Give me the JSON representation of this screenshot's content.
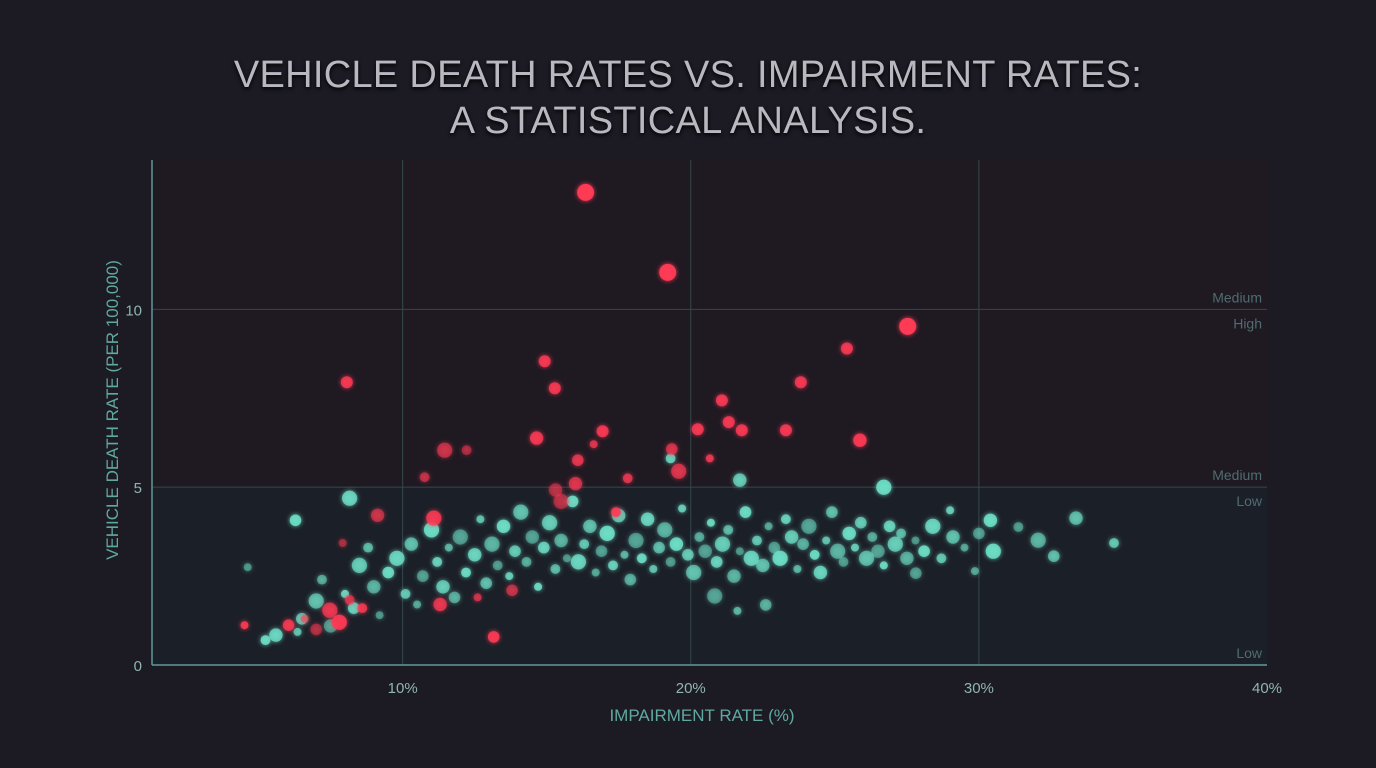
{
  "chart_data": {
    "type": "scatter",
    "title": [
      "VEHICLE DEATH RATES VS. IMPAIRMENT RATES:",
      "A STATISTICAL ANALYSIS."
    ],
    "xlabel": "IMPAIRMENT RATE (%)",
    "ylabel": "VEHICLE DEATH RATE (PER 100,000)",
    "xlim": [
      1.3,
      40
    ],
    "ylim": [
      0,
      14.2
    ],
    "x_ticks": [
      {
        "value": 10,
        "label": "10%"
      },
      {
        "value": 20,
        "label": "20%"
      },
      {
        "value": 30,
        "label": "30%"
      },
      {
        "value": 40,
        "label": "40%"
      }
    ],
    "y_ticks": [
      {
        "value": 0,
        "label": "0"
      },
      {
        "value": 5,
        "label": "5"
      },
      {
        "value": 10,
        "label": "10"
      }
    ],
    "grid": true,
    "band_labels": [
      {
        "y": 10,
        "above": "Medium",
        "below": "High"
      },
      {
        "y": 5,
        "above": "Medium",
        "below": "Low"
      },
      {
        "y": 0,
        "above": "Low"
      }
    ],
    "colors": {
      "background": "#1c1b24",
      "teal": "#6fe0c8",
      "red": "#ff3a55",
      "grid": "#34494d",
      "axis": "#5f9a98"
    },
    "series": [
      {
        "color": "#ff3a55",
        "points": [
          [
            16.35,
            13.29
          ],
          [
            19.2,
            11.04
          ],
          [
            27.53,
            9.52
          ],
          [
            14.93,
            8.54
          ],
          [
            25.42,
            8.9
          ],
          [
            8.06,
            7.95
          ],
          [
            15.28,
            7.78
          ],
          [
            23.82,
            7.95
          ],
          [
            21.08,
            7.44
          ],
          [
            21.32,
            6.83
          ],
          [
            16.94,
            6.57
          ],
          [
            20.24,
            6.63
          ],
          [
            21.77,
            6.6
          ],
          [
            23.3,
            6.6
          ],
          [
            14.65,
            6.38
          ],
          [
            16.63,
            6.21
          ],
          [
            19.34,
            6.07
          ],
          [
            11.46,
            6.04
          ],
          [
            12.22,
            6.04
          ],
          [
            25.87,
            6.32
          ],
          [
            20.66,
            5.81
          ],
          [
            16.08,
            5.76
          ],
          [
            19.58,
            5.45
          ],
          [
            10.76,
            5.28
          ],
          [
            15.31,
            4.92
          ],
          [
            4.51,
            1.12
          ],
          [
            6.04,
            1.12
          ],
          [
            7.47,
            1.54
          ],
          [
            8.16,
            1.83
          ],
          [
            9.13,
            4.21
          ],
          [
            7.92,
            3.43
          ],
          [
            13.16,
            0.79
          ],
          [
            11.08,
            4.13
          ],
          [
            17.81,
            5.25
          ],
          [
            16.0,
            5.1
          ],
          [
            6.6,
            1.3
          ],
          [
            7.0,
            1.0
          ],
          [
            7.8,
            1.2
          ],
          [
            8.6,
            1.6
          ],
          [
            11.3,
            1.7
          ],
          [
            12.6,
            1.9
          ],
          [
            13.8,
            2.1
          ],
          [
            15.5,
            4.6
          ],
          [
            17.4,
            4.3
          ]
        ]
      },
      {
        "color": "#6fe0c8",
        "points": [
          [
            4.62,
            2.75
          ],
          [
            6.28,
            4.07
          ],
          [
            8.16,
            4.69
          ],
          [
            34.69,
            3.43
          ],
          [
            33.37,
            4.13
          ],
          [
            29.86,
            2.64
          ],
          [
            27.81,
            2.58
          ],
          [
            26.7,
            5.0
          ],
          [
            19.3,
            5.81
          ],
          [
            21.7,
            5.2
          ],
          [
            21.62,
            1.52
          ],
          [
            22.6,
            1.69
          ],
          [
            20.83,
            1.94
          ],
          [
            5.24,
            0.7
          ],
          [
            5.6,
            0.84
          ],
          [
            6.35,
            0.93
          ],
          [
            32.6,
            3.06
          ],
          [
            32.06,
            3.51
          ],
          [
            31.37,
            3.88
          ],
          [
            30.4,
            4.07
          ],
          [
            29.0,
            4.35
          ],
          [
            6.5,
            1.3
          ],
          [
            7.0,
            1.8
          ],
          [
            7.2,
            2.4
          ],
          [
            7.5,
            1.1
          ],
          [
            8.0,
            2.0
          ],
          [
            8.3,
            1.6
          ],
          [
            8.5,
            2.8
          ],
          [
            8.8,
            3.3
          ],
          [
            9.0,
            2.2
          ],
          [
            9.2,
            1.4
          ],
          [
            9.5,
            2.6
          ],
          [
            9.8,
            3.0
          ],
          [
            10.1,
            2.0
          ],
          [
            10.3,
            3.4
          ],
          [
            10.5,
            1.7
          ],
          [
            10.7,
            2.5
          ],
          [
            11.0,
            3.8
          ],
          [
            11.2,
            2.9
          ],
          [
            11.4,
            2.2
          ],
          [
            11.6,
            3.3
          ],
          [
            11.8,
            1.9
          ],
          [
            12.0,
            3.6
          ],
          [
            12.2,
            2.6
          ],
          [
            12.5,
            3.1
          ],
          [
            12.7,
            4.1
          ],
          [
            12.9,
            2.3
          ],
          [
            13.1,
            3.4
          ],
          [
            13.3,
            2.8
          ],
          [
            13.5,
            3.9
          ],
          [
            13.7,
            2.5
          ],
          [
            13.9,
            3.2
          ],
          [
            14.1,
            4.3
          ],
          [
            14.3,
            2.9
          ],
          [
            14.5,
            3.6
          ],
          [
            14.7,
            2.2
          ],
          [
            14.9,
            3.3
          ],
          [
            15.1,
            4.0
          ],
          [
            15.3,
            2.7
          ],
          [
            15.5,
            3.5
          ],
          [
            15.7,
            3.0
          ],
          [
            15.9,
            4.6
          ],
          [
            16.1,
            2.9
          ],
          [
            16.3,
            3.4
          ],
          [
            16.5,
            3.9
          ],
          [
            16.7,
            2.6
          ],
          [
            16.9,
            3.2
          ],
          [
            17.1,
            3.7
          ],
          [
            17.3,
            2.8
          ],
          [
            17.5,
            4.2
          ],
          [
            17.7,
            3.1
          ],
          [
            17.9,
            2.4
          ],
          [
            18.1,
            3.5
          ],
          [
            18.3,
            3.0
          ],
          [
            18.5,
            4.1
          ],
          [
            18.7,
            2.7
          ],
          [
            18.9,
            3.3
          ],
          [
            19.1,
            3.8
          ],
          [
            19.3,
            2.9
          ],
          [
            19.5,
            3.4
          ],
          [
            19.7,
            4.4
          ],
          [
            19.9,
            3.1
          ],
          [
            20.1,
            2.6
          ],
          [
            20.3,
            3.6
          ],
          [
            20.5,
            3.2
          ],
          [
            20.7,
            4.0
          ],
          [
            20.9,
            2.9
          ],
          [
            21.1,
            3.4
          ],
          [
            21.3,
            3.8
          ],
          [
            21.5,
            2.5
          ],
          [
            21.7,
            3.2
          ],
          [
            21.9,
            4.3
          ],
          [
            22.1,
            3.0
          ],
          [
            22.3,
            3.5
          ],
          [
            22.5,
            2.8
          ],
          [
            22.7,
            3.9
          ],
          [
            22.9,
            3.3
          ],
          [
            23.1,
            3.0
          ],
          [
            23.3,
            4.1
          ],
          [
            23.5,
            3.6
          ],
          [
            23.7,
            2.7
          ],
          [
            23.9,
            3.4
          ],
          [
            24.1,
            3.9
          ],
          [
            24.3,
            3.1
          ],
          [
            24.5,
            2.6
          ],
          [
            24.7,
            3.5
          ],
          [
            24.9,
            4.3
          ],
          [
            25.1,
            3.2
          ],
          [
            25.3,
            2.9
          ],
          [
            25.5,
            3.7
          ],
          [
            25.7,
            3.3
          ],
          [
            25.9,
            4.0
          ],
          [
            26.1,
            3.0
          ],
          [
            26.3,
            3.6
          ],
          [
            26.5,
            3.2
          ],
          [
            26.7,
            2.8
          ],
          [
            26.9,
            3.9
          ],
          [
            27.1,
            3.4
          ],
          [
            27.3,
            3.7
          ],
          [
            27.5,
            3.0
          ],
          [
            27.8,
            3.5
          ],
          [
            28.1,
            3.2
          ],
          [
            28.4,
            3.9
          ],
          [
            28.7,
            3.0
          ],
          [
            29.1,
            3.6
          ],
          [
            29.5,
            3.3
          ],
          [
            30.0,
            3.7
          ],
          [
            30.5,
            3.2
          ]
        ]
      }
    ]
  }
}
